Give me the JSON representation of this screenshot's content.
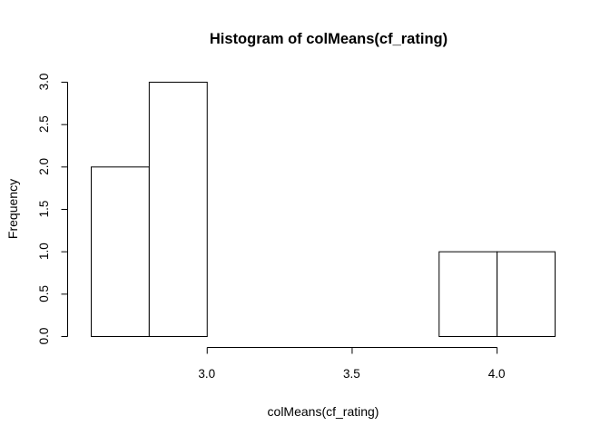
{
  "chart_data": {
    "type": "bar",
    "title": "Histogram of colMeans(cf_rating)",
    "xlabel": "colMeans(cf_rating)",
    "ylabel": "Frequency",
    "bins": [
      {
        "x0": 2.6,
        "x1": 2.8,
        "count": 2
      },
      {
        "x0": 2.8,
        "x1": 3.0,
        "count": 3
      },
      {
        "x0": 3.0,
        "x1": 3.2,
        "count": 0
      },
      {
        "x0": 3.2,
        "x1": 3.4,
        "count": 0
      },
      {
        "x0": 3.4,
        "x1": 3.6,
        "count": 0
      },
      {
        "x0": 3.6,
        "x1": 3.8,
        "count": 0
      },
      {
        "x0": 3.8,
        "x1": 4.0,
        "count": 1
      },
      {
        "x0": 4.0,
        "x1": 4.2,
        "count": 1
      }
    ],
    "xlim": [
      2.6,
      4.2
    ],
    "ylim": [
      0,
      3
    ],
    "x_ticks": [
      3.0,
      3.5,
      4.0
    ],
    "x_tick_labels": [
      "3.0",
      "3.5",
      "4.0"
    ],
    "y_ticks": [
      0,
      0.5,
      1,
      1.5,
      2,
      2.5,
      3
    ],
    "y_tick_labels": [
      "0.0",
      "0.5",
      "1.0",
      "1.5",
      "2.0",
      "2.5",
      "3.0"
    ],
    "grid": false,
    "legend": "none"
  }
}
